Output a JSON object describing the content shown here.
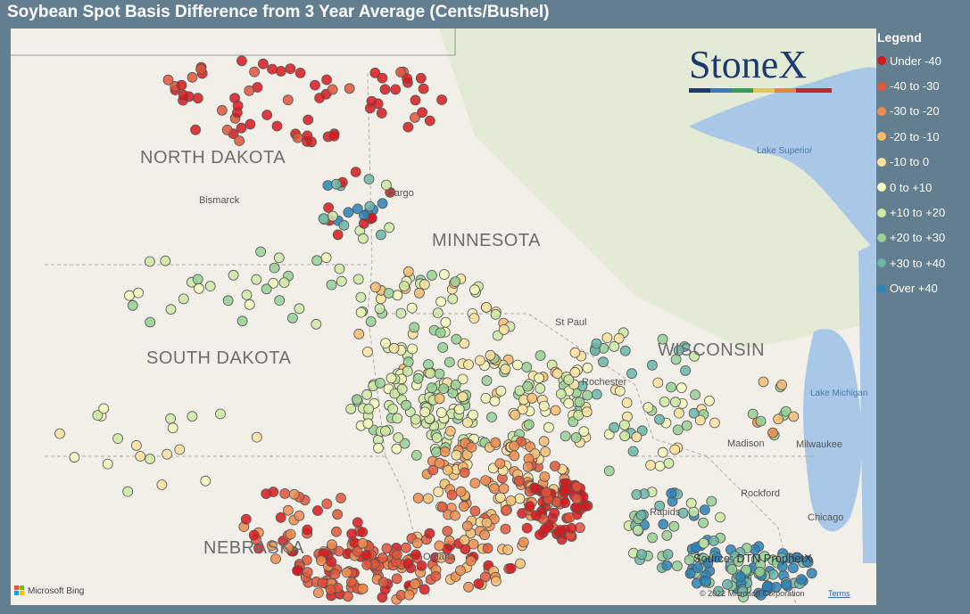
{
  "header": {
    "title": "Soybean Spot Basis Difference from 3 Year Average (Cents/Bushel)"
  },
  "legend": {
    "title": "Legend",
    "items": [
      {
        "label": "Under -40",
        "color": "#d7191c"
      },
      {
        "label": "-40 to -30",
        "color": "#e2553a"
      },
      {
        "label": "-30 to -20",
        "color": "#ee8c4d"
      },
      {
        "label": "-20 to -10",
        "color": "#f6bb70"
      },
      {
        "label": "-10 to 0",
        "color": "#fde29d"
      },
      {
        "label": "0 to +10",
        "color": "#f4f8bb"
      },
      {
        "label": "+10 to +20",
        "color": "#cde9a2"
      },
      {
        "label": "+20 to +30",
        "color": "#96d094"
      },
      {
        "label": "+30 to +40",
        "color": "#6bb5a9"
      },
      {
        "label": "Over +40",
        "color": "#2b83ba"
      }
    ]
  },
  "map": {
    "states": [
      "NORTH DAKOTA",
      "SOUTH DAKOTA",
      "NEBRASKA",
      "MINNESOTA",
      "WISCONSIN"
    ],
    "cities": [
      "Bismarck",
      "Fargo",
      "St Paul",
      "Rochester",
      "Madison",
      "Milwaukee",
      "Rockford",
      "Chicago",
      "Omaha",
      "Rapids"
    ],
    "lakes": [
      "Lake Superior",
      "Lake Michigan"
    ],
    "logo": "StoneX",
    "source": "Source: DTN ProphetX",
    "provider": "Microsoft Bing",
    "copyright": "© 2022 Microsoft Corporation",
    "terms": "Terms"
  }
}
